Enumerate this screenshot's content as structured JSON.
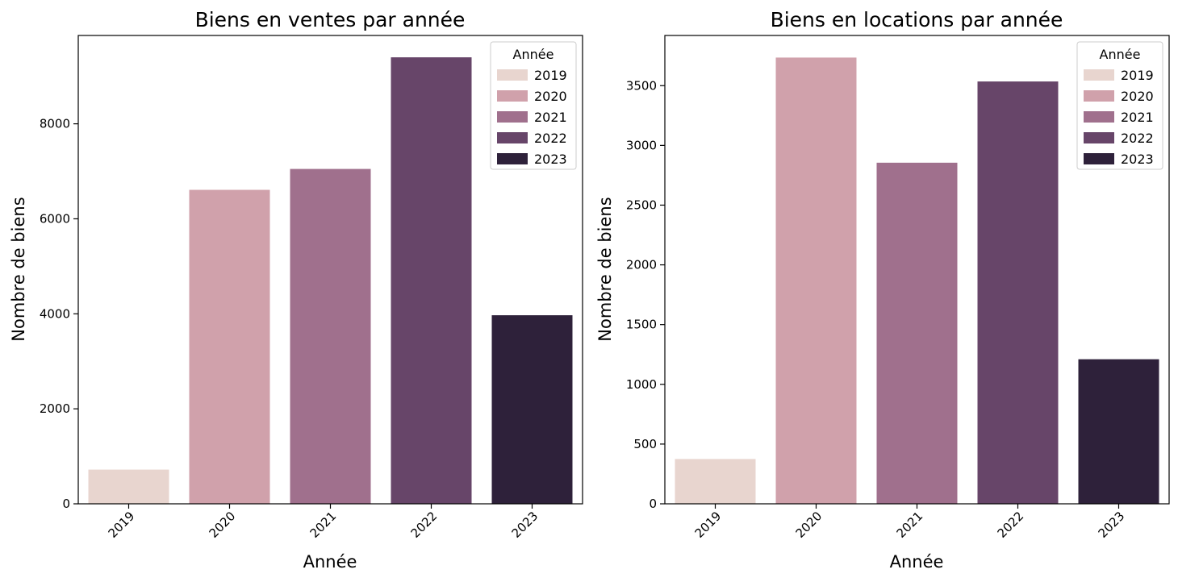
{
  "chart_data": [
    {
      "type": "bar",
      "title": "Biens en ventes par année",
      "xlabel": "Année",
      "ylabel": "Nombre de biens",
      "categories": [
        "2019",
        "2020",
        "2021",
        "2022",
        "2023"
      ],
      "values": [
        720,
        6610,
        7050,
        9400,
        3970
      ],
      "colors": [
        "#e8d5cf",
        "#d0a1ab",
        "#a0708d",
        "#674569",
        "#2e213a"
      ],
      "ylim": [
        0,
        9860
      ],
      "yticks": [
        0,
        2000,
        4000,
        6000,
        8000
      ],
      "legend": {
        "title": "Année",
        "position": "top-right",
        "entries": [
          "2019",
          "2020",
          "2021",
          "2022",
          "2023"
        ]
      },
      "grid": false
    },
    {
      "type": "bar",
      "title": "Biens en locations par année",
      "xlabel": "Année",
      "ylabel": "Nombre de biens",
      "categories": [
        "2019",
        "2020",
        "2021",
        "2022",
        "2023"
      ],
      "values": [
        375,
        3735,
        2855,
        3535,
        1210
      ],
      "colors": [
        "#e8d5cf",
        "#d0a1ab",
        "#a0708d",
        "#674569",
        "#2e213a"
      ],
      "ylim": [
        0,
        3920
      ],
      "yticks": [
        0,
        500,
        1000,
        1500,
        2000,
        2500,
        3000,
        3500
      ],
      "legend": {
        "title": "Année",
        "position": "top-right",
        "entries": [
          "2019",
          "2020",
          "2021",
          "2022",
          "2023"
        ]
      },
      "grid": false
    }
  ]
}
